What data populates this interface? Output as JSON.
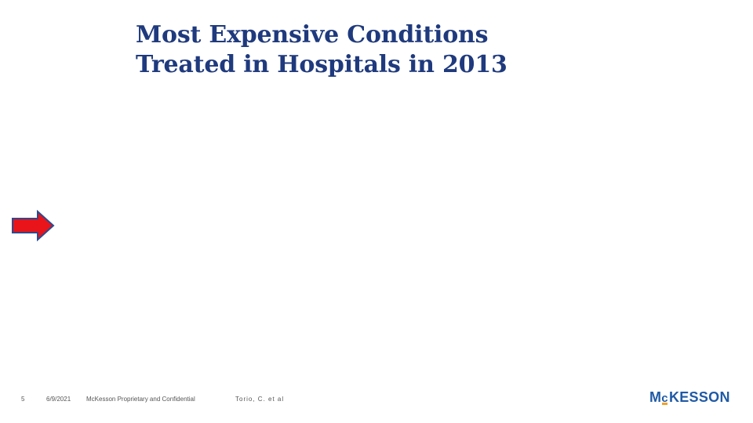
{
  "title": {
    "line1": "Most Expensive Conditions",
    "line2": "Treated in Hospitals in 2013"
  },
  "arrow": {
    "icon": "right-arrow-icon",
    "fill_color": "#e8141a",
    "stroke_color": "#2c4a8f"
  },
  "footer": {
    "page_number": "5",
    "date": "6/9/2021",
    "confidentiality": "McKesson Proprietary and Confidential",
    "citation": "Torio, C. et al"
  },
  "logo": {
    "text_before": "M",
    "text_c": "c",
    "text_after": "KESSON",
    "brand_color": "#1f5aa6",
    "accent_color": "#f2a12b"
  },
  "colors": {
    "title": "#1f3a7d",
    "background": "#ffffff"
  }
}
